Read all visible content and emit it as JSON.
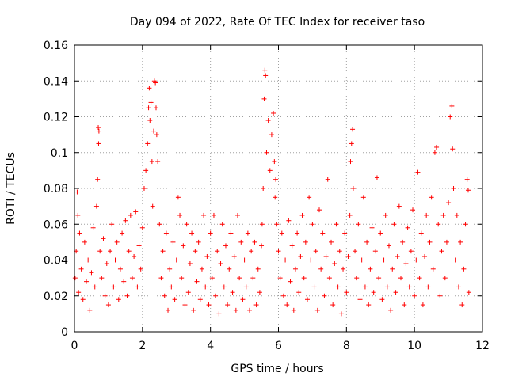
{
  "chart_data": {
    "type": "scatter",
    "title": "Day 094 of 2022, Rate Of TEC Index for receiver taso",
    "xlabel": "GPS time / hours",
    "ylabel": "ROTI / TECUs",
    "xlim": [
      0,
      12
    ],
    "ylim": [
      0,
      0.16
    ],
    "xticks": [
      0,
      2,
      4,
      6,
      8,
      10,
      12
    ],
    "xtick_labels": [
      "0",
      "2",
      "4",
      "6",
      "8",
      "10",
      "12"
    ],
    "yticks": [
      0,
      0.02,
      0.04,
      0.06,
      0.08,
      0.1,
      0.12,
      0.14,
      0.16
    ],
    "ytick_labels": [
      "0",
      "0.02",
      "0.04",
      "0.06",
      "0.08",
      "0.1",
      "0.12",
      "0.14",
      "0.16"
    ],
    "grid": true,
    "marker": "+",
    "color": "#ff0000",
    "series": [
      {
        "name": "ROTI",
        "points": [
          [
            0.02,
            0.03
          ],
          [
            0.05,
            0.045
          ],
          [
            0.08,
            0.078
          ],
          [
            0.1,
            0.065
          ],
          [
            0.12,
            0.022
          ],
          [
            0.15,
            0.055
          ],
          [
            0.2,
            0.035
          ],
          [
            0.25,
            0.018
          ],
          [
            0.3,
            0.05
          ],
          [
            0.35,
            0.028
          ],
          [
            0.4,
            0.04
          ],
          [
            0.45,
            0.012
          ],
          [
            0.5,
            0.033
          ],
          [
            0.55,
            0.058
          ],
          [
            0.6,
            0.025
          ],
          [
            0.65,
            0.07
          ],
          [
            0.68,
            0.085
          ],
          [
            0.7,
            0.114
          ],
          [
            0.71,
            0.105
          ],
          [
            0.72,
            0.112
          ],
          [
            0.75,
            0.045
          ],
          [
            0.8,
            0.03
          ],
          [
            0.85,
            0.052
          ],
          [
            0.9,
            0.02
          ],
          [
            0.95,
            0.038
          ],
          [
            1.0,
            0.015
          ],
          [
            1.05,
            0.045
          ],
          [
            1.1,
            0.06
          ],
          [
            1.15,
            0.025
          ],
          [
            1.2,
            0.04
          ],
          [
            1.25,
            0.05
          ],
          [
            1.3,
            0.018
          ],
          [
            1.35,
            0.035
          ],
          [
            1.4,
            0.055
          ],
          [
            1.45,
            0.028
          ],
          [
            1.5,
            0.062
          ],
          [
            1.55,
            0.02
          ],
          [
            1.6,
            0.045
          ],
          [
            1.65,
            0.065
          ],
          [
            1.7,
            0.03
          ],
          [
            1.75,
            0.042
          ],
          [
            1.8,
            0.067
          ],
          [
            1.85,
            0.025
          ],
          [
            1.9,
            0.048
          ],
          [
            1.95,
            0.035
          ],
          [
            2.0,
            0.058
          ],
          [
            2.05,
            0.08
          ],
          [
            2.1,
            0.09
          ],
          [
            2.15,
            0.105
          ],
          [
            2.18,
            0.125
          ],
          [
            2.2,
            0.136
          ],
          [
            2.22,
            0.118
          ],
          [
            2.25,
            0.128
          ],
          [
            2.28,
            0.095
          ],
          [
            2.3,
            0.07
          ],
          [
            2.33,
            0.112
          ],
          [
            2.35,
            0.14
          ],
          [
            2.38,
            0.139
          ],
          [
            2.4,
            0.125
          ],
          [
            2.42,
            0.11
          ],
          [
            2.45,
            0.095
          ],
          [
            2.5,
            0.06
          ],
          [
            2.55,
            0.03
          ],
          [
            2.6,
            0.045
          ],
          [
            2.65,
            0.02
          ],
          [
            2.7,
            0.055
          ],
          [
            2.75,
            0.012
          ],
          [
            2.8,
            0.035
          ],
          [
            2.85,
            0.025
          ],
          [
            2.9,
            0.05
          ],
          [
            2.95,
            0.018
          ],
          [
            3.0,
            0.04
          ],
          [
            3.05,
            0.075
          ],
          [
            3.1,
            0.065
          ],
          [
            3.15,
            0.03
          ],
          [
            3.2,
            0.048
          ],
          [
            3.25,
            0.015
          ],
          [
            3.3,
            0.06
          ],
          [
            3.35,
            0.022
          ],
          [
            3.4,
            0.038
          ],
          [
            3.45,
            0.055
          ],
          [
            3.5,
            0.012
          ],
          [
            3.55,
            0.045
          ],
          [
            3.6,
            0.028
          ],
          [
            3.65,
            0.05
          ],
          [
            3.7,
            0.018
          ],
          [
            3.75,
            0.035
          ],
          [
            3.8,
            0.065
          ],
          [
            3.85,
            0.025
          ],
          [
            3.9,
            0.042
          ],
          [
            3.95,
            0.015
          ],
          [
            4.0,
            0.055
          ],
          [
            4.05,
            0.03
          ],
          [
            4.1,
            0.065
          ],
          [
            4.15,
            0.02
          ],
          [
            4.2,
            0.045
          ],
          [
            4.25,
            0.01
          ],
          [
            4.3,
            0.038
          ],
          [
            4.35,
            0.06
          ],
          [
            4.4,
            0.025
          ],
          [
            4.45,
            0.048
          ],
          [
            4.5,
            0.015
          ],
          [
            4.55,
            0.035
          ],
          [
            4.6,
            0.055
          ],
          [
            4.65,
            0.022
          ],
          [
            4.7,
            0.042
          ],
          [
            4.75,
            0.012
          ],
          [
            4.8,
            0.065
          ],
          [
            4.85,
            0.03
          ],
          [
            4.9,
            0.05
          ],
          [
            4.95,
            0.018
          ],
          [
            5.0,
            0.04
          ],
          [
            5.05,
            0.025
          ],
          [
            5.1,
            0.055
          ],
          [
            5.15,
            0.012
          ],
          [
            5.2,
            0.045
          ],
          [
            5.25,
            0.03
          ],
          [
            5.3,
            0.05
          ],
          [
            5.35,
            0.015
          ],
          [
            5.4,
            0.035
          ],
          [
            5.45,
            0.022
          ],
          [
            5.5,
            0.048
          ],
          [
            5.52,
            0.06
          ],
          [
            5.55,
            0.08
          ],
          [
            5.58,
            0.13
          ],
          [
            5.6,
            0.146
          ],
          [
            5.62,
            0.143
          ],
          [
            5.65,
            0.1
          ],
          [
            5.7,
            0.118
          ],
          [
            5.75,
            0.09
          ],
          [
            5.8,
            0.11
          ],
          [
            5.85,
            0.122
          ],
          [
            5.88,
            0.095
          ],
          [
            5.9,
            0.075
          ],
          [
            5.92,
            0.085
          ],
          [
            5.95,
            0.06
          ],
          [
            6.0,
            0.045
          ],
          [
            6.05,
            0.03
          ],
          [
            6.1,
            0.055
          ],
          [
            6.15,
            0.02
          ],
          [
            6.2,
            0.04
          ],
          [
            6.25,
            0.015
          ],
          [
            6.3,
            0.062
          ],
          [
            6.35,
            0.028
          ],
          [
            6.4,
            0.048
          ],
          [
            6.45,
            0.012
          ],
          [
            6.5,
            0.035
          ],
          [
            6.55,
            0.055
          ],
          [
            6.6,
            0.022
          ],
          [
            6.65,
            0.042
          ],
          [
            6.7,
            0.065
          ],
          [
            6.75,
            0.03
          ],
          [
            6.8,
            0.05
          ],
          [
            6.85,
            0.018
          ],
          [
            6.9,
            0.075
          ],
          [
            6.95,
            0.04
          ],
          [
            7.0,
            0.06
          ],
          [
            7.05,
            0.025
          ],
          [
            7.1,
            0.045
          ],
          [
            7.15,
            0.012
          ],
          [
            7.2,
            0.068
          ],
          [
            7.25,
            0.035
          ],
          [
            7.3,
            0.055
          ],
          [
            7.35,
            0.02
          ],
          [
            7.4,
            0.042
          ],
          [
            7.45,
            0.085
          ],
          [
            7.5,
            0.03
          ],
          [
            7.55,
            0.05
          ],
          [
            7.6,
            0.015
          ],
          [
            7.65,
            0.038
          ],
          [
            7.7,
            0.06
          ],
          [
            7.75,
            0.025
          ],
          [
            7.8,
            0.045
          ],
          [
            7.85,
            0.01
          ],
          [
            7.9,
            0.035
          ],
          [
            7.95,
            0.055
          ],
          [
            8.0,
            0.022
          ],
          [
            8.05,
            0.042
          ],
          [
            8.1,
            0.065
          ],
          [
            8.12,
            0.095
          ],
          [
            8.15,
            0.105
          ],
          [
            8.18,
            0.113
          ],
          [
            8.2,
            0.08
          ],
          [
            8.25,
            0.045
          ],
          [
            8.3,
            0.03
          ],
          [
            8.35,
            0.06
          ],
          [
            8.4,
            0.018
          ],
          [
            8.45,
            0.04
          ],
          [
            8.5,
            0.075
          ],
          [
            8.55,
            0.025
          ],
          [
            8.6,
            0.05
          ],
          [
            8.65,
            0.015
          ],
          [
            8.7,
            0.035
          ],
          [
            8.75,
            0.058
          ],
          [
            8.8,
            0.022
          ],
          [
            8.85,
            0.045
          ],
          [
            8.9,
            0.086
          ],
          [
            8.95,
            0.03
          ],
          [
            9.0,
            0.055
          ],
          [
            9.05,
            0.018
          ],
          [
            9.1,
            0.04
          ],
          [
            9.15,
            0.065
          ],
          [
            9.2,
            0.025
          ],
          [
            9.25,
            0.048
          ],
          [
            9.3,
            0.012
          ],
          [
            9.35,
            0.035
          ],
          [
            9.4,
            0.06
          ],
          [
            9.45,
            0.022
          ],
          [
            9.5,
            0.042
          ],
          [
            9.55,
            0.07
          ],
          [
            9.6,
            0.03
          ],
          [
            9.65,
            0.05
          ],
          [
            9.7,
            0.015
          ],
          [
            9.75,
            0.038
          ],
          [
            9.8,
            0.058
          ],
          [
            9.85,
            0.025
          ],
          [
            9.9,
            0.045
          ],
          [
            9.95,
            0.068
          ],
          [
            10.0,
            0.02
          ],
          [
            10.05,
            0.04
          ],
          [
            10.1,
            0.089
          ],
          [
            10.15,
            0.03
          ],
          [
            10.2,
            0.055
          ],
          [
            10.25,
            0.015
          ],
          [
            10.3,
            0.042
          ],
          [
            10.35,
            0.065
          ],
          [
            10.4,
            0.025
          ],
          [
            10.45,
            0.05
          ],
          [
            10.5,
            0.075
          ],
          [
            10.55,
            0.035
          ],
          [
            10.6,
            0.1
          ],
          [
            10.65,
            0.103
          ],
          [
            10.7,
            0.06
          ],
          [
            10.75,
            0.02
          ],
          [
            10.8,
            0.045
          ],
          [
            10.85,
            0.065
          ],
          [
            10.9,
            0.03
          ],
          [
            10.95,
            0.05
          ],
          [
            11.0,
            0.072
          ],
          [
            11.05,
            0.12
          ],
          [
            11.1,
            0.126
          ],
          [
            11.12,
            0.102
          ],
          [
            11.15,
            0.08
          ],
          [
            11.2,
            0.04
          ],
          [
            11.25,
            0.065
          ],
          [
            11.3,
            0.025
          ],
          [
            11.35,
            0.05
          ],
          [
            11.4,
            0.015
          ],
          [
            11.45,
            0.035
          ],
          [
            11.5,
            0.06
          ],
          [
            11.55,
            0.085
          ],
          [
            11.58,
            0.079
          ],
          [
            11.6,
            0.022
          ]
        ]
      }
    ]
  }
}
